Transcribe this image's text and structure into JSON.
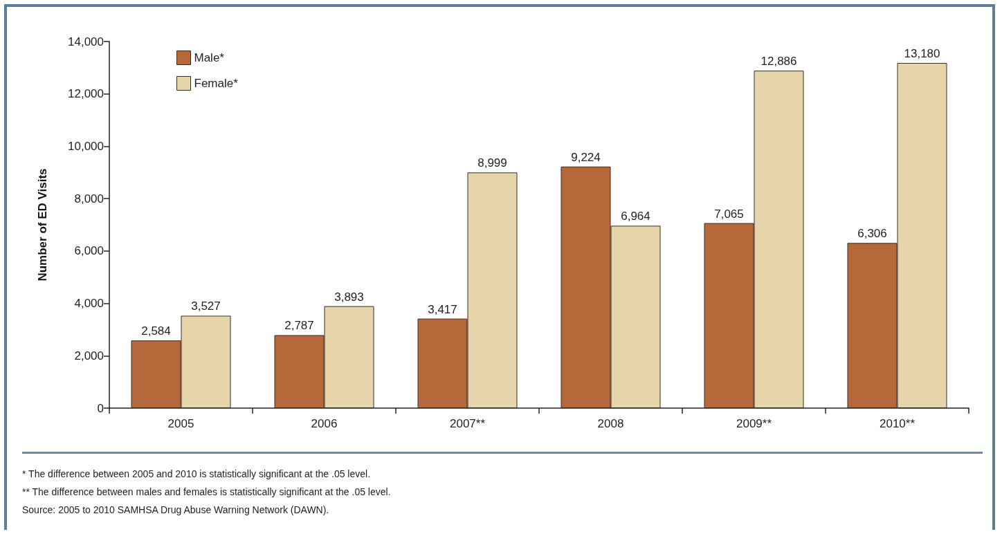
{
  "chart_data": {
    "type": "bar",
    "ylabel": "Number of ED Visits",
    "categories": [
      "2005",
      "2006",
      "2007**",
      "2008",
      "2009**",
      "2010**"
    ],
    "series": [
      {
        "name": "Male*",
        "color": "#b5693a",
        "values": [
          2584,
          2787,
          3417,
          9224,
          7065,
          6306
        ],
        "value_labels": [
          "2,584",
          "2,787",
          "3,417",
          "9,224",
          "7,065",
          "6,306"
        ]
      },
      {
        "name": "Female*",
        "color": "#e6d5ab",
        "values": [
          3527,
          3893,
          8999,
          6964,
          12886,
          13180
        ],
        "value_labels": [
          "3,527",
          "3,893",
          "8,999",
          "6,964",
          "12,886",
          "13,180"
        ]
      }
    ],
    "ylim": [
      0,
      14000
    ],
    "yticks": [
      0,
      {
        "value": 2000,
        "label": "2,000"
      },
      {
        "value": 4000,
        "label": "4,000"
      },
      {
        "value": 6000,
        "label": "6,000"
      },
      {
        "value": 8000,
        "label": "8,000"
      },
      {
        "value": 10000,
        "label": "10,000"
      },
      {
        "value": 12000,
        "label": "12,000"
      },
      {
        "value": 14000,
        "label": "14,000"
      }
    ],
    "grid": false,
    "legend": "top left",
    "annotations": [
      "* The difference between 2005 and 2010 is statistically significant at the .05 level.",
      "** The difference between males and females is statistically significant at the .05 level.",
      "Source: 2005 to 2010 SAMHSA Drug Abuse Warning Network (DAWN)."
    ]
  }
}
